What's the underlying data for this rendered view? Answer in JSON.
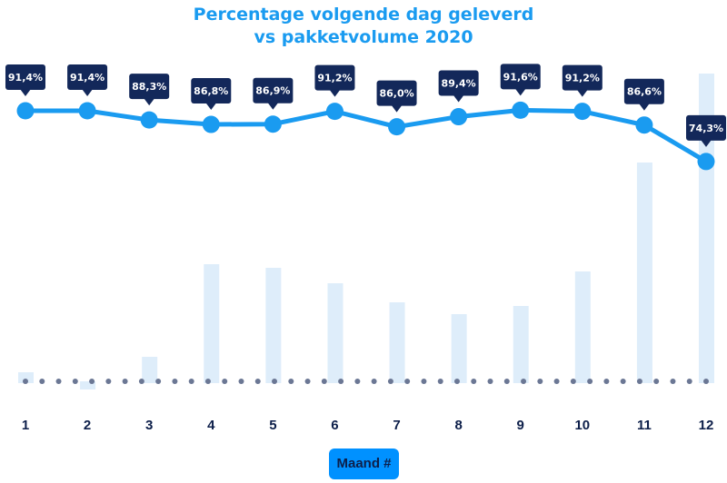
{
  "chart_data": {
    "type": "bar+line",
    "title": "Percentage volgende dag geleverd",
    "subtitle": "vs pakketvolume 2020",
    "xlabel": "Maand #",
    "categories": [
      "1",
      "2",
      "3",
      "4",
      "5",
      "6",
      "7",
      "8",
      "9",
      "10",
      "11",
      "12"
    ],
    "series": [
      {
        "kind": "line",
        "values": [
          91.4,
          91.4,
          88.3,
          86.8,
          86.9,
          91.2,
          86.0,
          89.4,
          91.6,
          91.2,
          86.6,
          74.3
        ],
        "labels": [
          "91,4%",
          "91,4%",
          "88,3%",
          "86,8%",
          "86,9%",
          "91,2%",
          "86,0%",
          "89,4%",
          "91,6%",
          "91,2%",
          "86,6%",
          "74,3%"
        ]
      },
      {
        "kind": "bar",
        "values": [
          10,
          -4,
          27,
          129,
          125,
          108,
          87,
          74,
          83,
          121,
          241,
          339
        ]
      }
    ],
    "y_axis_shown": false,
    "grid": false,
    "colors": {
      "line": "#1a9bf0",
      "bar": "#deedfa",
      "label_bg": "#13285a",
      "baseline_dots": "#6b7794",
      "legend_bg": "#0091ff",
      "text_dark": "#0d1f4a"
    }
  }
}
